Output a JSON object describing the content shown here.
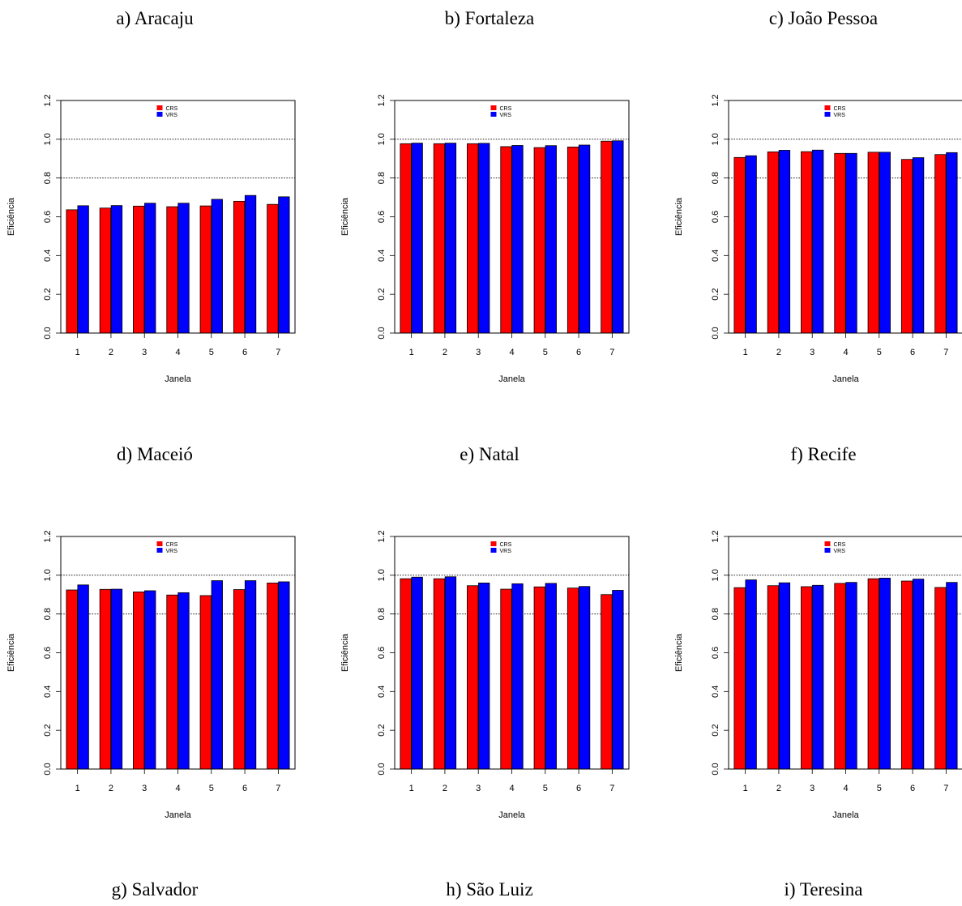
{
  "colors": {
    "crs": "#ff0000",
    "vrs": "#0000ff",
    "grid": "#000000"
  },
  "chart_data": [
    {
      "type": "bar",
      "caption": "a) Aracaju",
      "categories": [
        "1",
        "2",
        "3",
        "4",
        "5",
        "6",
        "7"
      ],
      "series": [
        {
          "name": "CRS",
          "values": [
            0.636,
            0.645,
            0.655,
            0.652,
            0.656,
            0.68,
            0.664
          ]
        },
        {
          "name": "VRS",
          "values": [
            0.657,
            0.658,
            0.67,
            0.67,
            0.69,
            0.71,
            0.703
          ]
        }
      ],
      "xlabel": "Janela",
      "ylabel": "Eficiência",
      "ylim": [
        0,
        1.2
      ],
      "yticks": [
        "0.0",
        "0.2",
        "0.4",
        "0.6",
        "0.8",
        "1.0",
        "1.2"
      ],
      "grid": [
        0.8,
        1.0,
        1.2
      ],
      "legend": "top-center"
    },
    {
      "type": "bar",
      "caption": "b) Fortaleza",
      "categories": [
        "1",
        "2",
        "3",
        "4",
        "5",
        "6",
        "7"
      ],
      "series": [
        {
          "name": "CRS",
          "values": [
            0.977,
            0.977,
            0.977,
            0.962,
            0.957,
            0.96,
            0.99
          ]
        },
        {
          "name": "VRS",
          "values": [
            0.98,
            0.98,
            0.979,
            0.968,
            0.967,
            0.97,
            0.992
          ]
        }
      ],
      "xlabel": "Janela",
      "ylabel": "Eficiência",
      "ylim": [
        0,
        1.2
      ],
      "yticks": [
        "0.0",
        "0.2",
        "0.4",
        "0.6",
        "0.8",
        "1.0",
        "1.2"
      ],
      "grid": [
        0.8,
        1.0,
        1.2
      ],
      "legend": "top-center"
    },
    {
      "type": "bar",
      "caption": "c) João Pessoa",
      "categories": [
        "1",
        "2",
        "3",
        "4",
        "5",
        "6",
        "7"
      ],
      "series": [
        {
          "name": "CRS",
          "values": [
            0.906,
            0.935,
            0.936,
            0.927,
            0.933,
            0.896,
            0.921
          ]
        },
        {
          "name": "VRS",
          "values": [
            0.915,
            0.943,
            0.944,
            0.927,
            0.933,
            0.905,
            0.931
          ]
        }
      ],
      "xlabel": "Janela",
      "ylabel": "Eficiência",
      "ylim": [
        0,
        1.2
      ],
      "yticks": [
        "0.0",
        "0.2",
        "0.4",
        "0.6",
        "0.8",
        "1.0",
        "1.2"
      ],
      "grid": [
        0.8,
        1.0,
        1.2
      ],
      "legend": "top-center"
    },
    {
      "type": "bar",
      "caption": "g) Salvador",
      "categories": [
        "1",
        "2",
        "3",
        "4",
        "5",
        "6",
        "7"
      ],
      "series": [
        {
          "name": "CRS",
          "values": [
            0.924,
            0.927,
            0.914,
            0.898,
            0.895,
            0.926,
            0.96
          ]
        },
        {
          "name": "VRS",
          "values": [
            0.95,
            0.928,
            0.92,
            0.91,
            0.972,
            0.972,
            0.966
          ]
        }
      ],
      "xlabel": "Janela",
      "ylabel": "Eficiência",
      "ylim": [
        0,
        1.2
      ],
      "yticks": [
        "0.0",
        "0.2",
        "0.4",
        "0.6",
        "0.8",
        "1.0",
        "1.2"
      ],
      "grid": [
        0.8,
        1.0,
        1.2
      ],
      "legend": "top-center"
    },
    {
      "type": "bar",
      "caption": "h) São Luiz",
      "categories": [
        "1",
        "2",
        "3",
        "4",
        "5",
        "6",
        "7"
      ],
      "series": [
        {
          "name": "CRS",
          "values": [
            0.982,
            0.982,
            0.946,
            0.928,
            0.94,
            0.934,
            0.9
          ]
        },
        {
          "name": "VRS",
          "values": [
            0.99,
            0.992,
            0.96,
            0.956,
            0.958,
            0.942,
            0.922
          ]
        }
      ],
      "xlabel": "Janela",
      "ylabel": "Eficiência",
      "ylim": [
        0,
        1.2
      ],
      "yticks": [
        "0.0",
        "0.2",
        "0.4",
        "0.6",
        "0.8",
        "1.0",
        "1.2"
      ],
      "grid": [
        0.8,
        1.0,
        1.2
      ],
      "legend": "top-center"
    },
    {
      "type": "bar",
      "caption": "i) Teresina",
      "categories": [
        "1",
        "2",
        "3",
        "4",
        "5",
        "6",
        "7"
      ],
      "series": [
        {
          "name": "CRS",
          "values": [
            0.936,
            0.946,
            0.941,
            0.958,
            0.982,
            0.97,
            0.937
          ]
        },
        {
          "name": "VRS",
          "values": [
            0.976,
            0.961,
            0.948,
            0.963,
            0.985,
            0.98,
            0.963
          ]
        }
      ],
      "xlabel": "Janela",
      "ylabel": "Eficiência",
      "ylim": [
        0,
        1.2
      ],
      "yticks": [
        "0.0",
        "0.2",
        "0.4",
        "0.6",
        "0.8",
        "1.0",
        "1.2"
      ],
      "grid": [
        0.8,
        1.0,
        1.2
      ],
      "legend": "top-center"
    }
  ],
  "captions_row2": [
    "d) Maceió",
    "e) Natal",
    "f) Recife"
  ]
}
